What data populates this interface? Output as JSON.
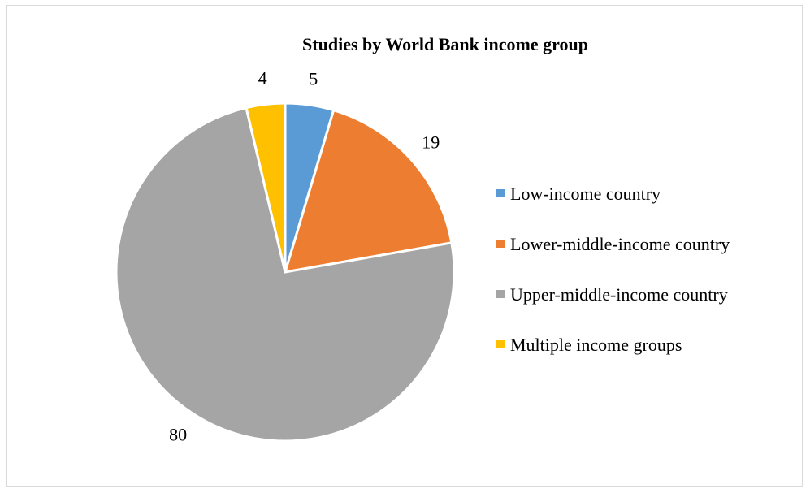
{
  "chart_data": {
    "type": "pie",
    "title": "Studies by World Bank income group",
    "categories": [
      "Low-income country",
      "Lower-middle-income country",
      "Upper-middle-income country",
      "Multiple income groups"
    ],
    "values": [
      5,
      19,
      80,
      4
    ],
    "colors": [
      "#5b9bd5",
      "#ed7d31",
      "#a5a5a5",
      "#ffc000"
    ],
    "legend_position": "right",
    "data_labels": true
  }
}
